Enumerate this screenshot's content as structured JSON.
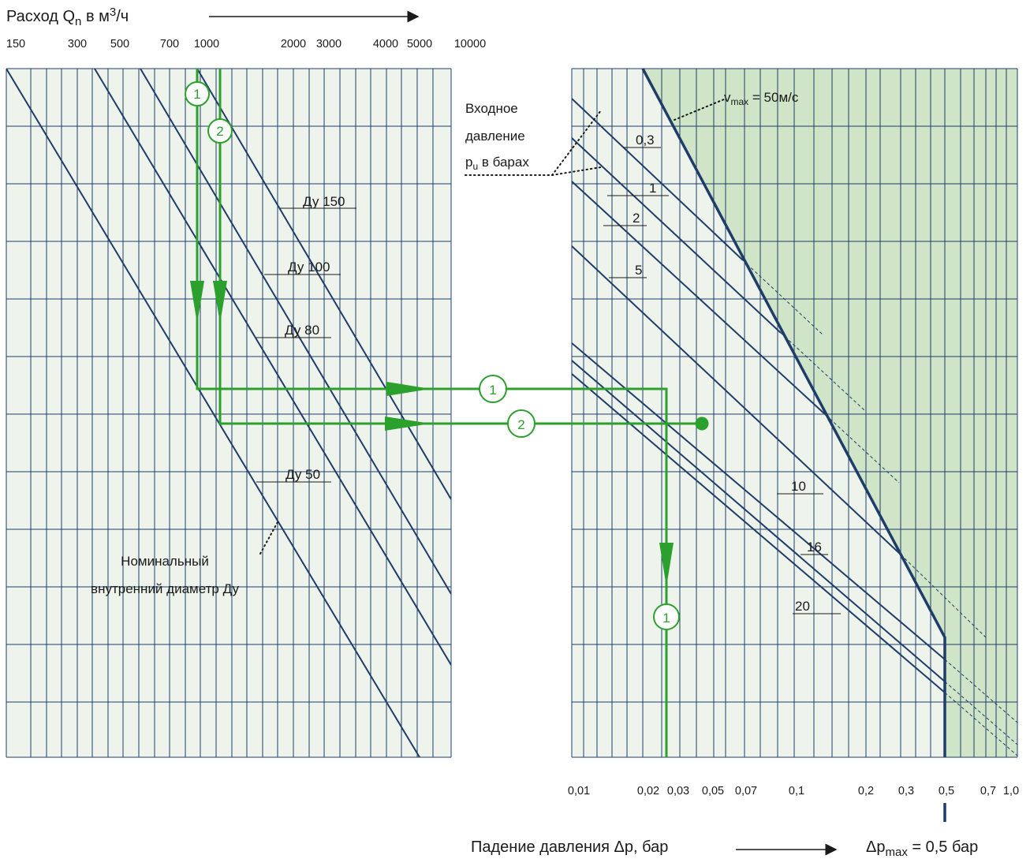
{
  "texts": {
    "top_title_main": "Расход Q",
    "top_title_sub": "n",
    "top_title_rest": " в м",
    "top_title_sup": "3",
    "top_title_end": "/ч",
    "bottom_axis": "Падение давления Δp, бар",
    "dpmax_main": "Δp",
    "dpmax_sub": "max",
    "dpmax_rest": " = 0,5 бар",
    "inlet_line1": "Входное",
    "inlet_line2": "давление",
    "inlet_line3_main": "p",
    "inlet_line3_sub": "u",
    "inlet_line3_rest": " в барах",
    "vmax_main": "v",
    "vmax_sub": "max",
    "vmax_rest": " = 50м/с",
    "nominal_line1": "Номинальный",
    "nominal_line2": "внутренний диаметр Ду"
  },
  "colors": {
    "panel_bg": "#eef4eb",
    "shade": "#d0e5c7",
    "grid": "#1f3d6b",
    "green": "#2ca02c"
  },
  "chart_data": [
    {
      "type": "line",
      "panel": "left",
      "x_axis_title": "Расход Qn в м3/ч",
      "x_ticks": [
        "150",
        "300",
        "500",
        "700",
        "1000",
        "2000",
        "3000",
        "4000",
        "5000",
        "10000"
      ],
      "series": [
        {
          "name": "Ду 50"
        },
        {
          "name": "Ду 80"
        },
        {
          "name": "Ду 100"
        },
        {
          "name": "Ду 150"
        }
      ],
      "annotation": "Номинальный внутренний диаметр Ду",
      "examples": [
        {
          "marker": "1",
          "flow": 950
        },
        {
          "marker": "2",
          "flow": 1100
        }
      ]
    },
    {
      "type": "line",
      "panel": "right",
      "x_axis_title": "Падение давления Δp, бар",
      "x_ticks": [
        "0,01",
        "0,02",
        "0,03",
        "0,05",
        "0,07",
        "0,1",
        "0,2",
        "0,3",
        "0,5",
        "0,7",
        "1,0"
      ],
      "series": [
        {
          "name": "0,3"
        },
        {
          "name": "1"
        },
        {
          "name": "2"
        },
        {
          "name": "5"
        },
        {
          "name": "10"
        },
        {
          "name": "16"
        },
        {
          "name": "20"
        }
      ],
      "annotation": "Входное давление pu в барах",
      "limit_line": "vmax = 50м/с",
      "limit_value": "Δpmax = 0,5 бар",
      "examples": [
        {
          "marker": "1",
          "dp": 0.026
        },
        {
          "marker": "2",
          "dp": 0.042
        }
      ]
    }
  ]
}
